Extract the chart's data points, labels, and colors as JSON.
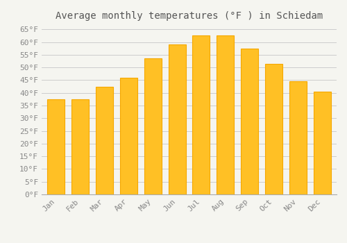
{
  "title": "Average monthly temperatures (°F ) in Schiedam",
  "months": [
    "Jan",
    "Feb",
    "Mar",
    "Apr",
    "May",
    "Jun",
    "Jul",
    "Aug",
    "Sep",
    "Oct",
    "Nov",
    "Dec"
  ],
  "values": [
    37.5,
    37.5,
    42.5,
    46.0,
    53.5,
    59.0,
    62.5,
    62.5,
    57.5,
    51.5,
    44.5,
    40.5
  ],
  "bar_color_face": "#FFC025",
  "bar_color_edge": "#F5A800",
  "background_color": "#F5F5F0",
  "grid_color": "#CCCCCC",
  "ylim": [
    0,
    67
  ],
  "ytick_step": 5,
  "title_fontsize": 10,
  "tick_fontsize": 8,
  "tick_color": "#888888",
  "title_color": "#555555"
}
